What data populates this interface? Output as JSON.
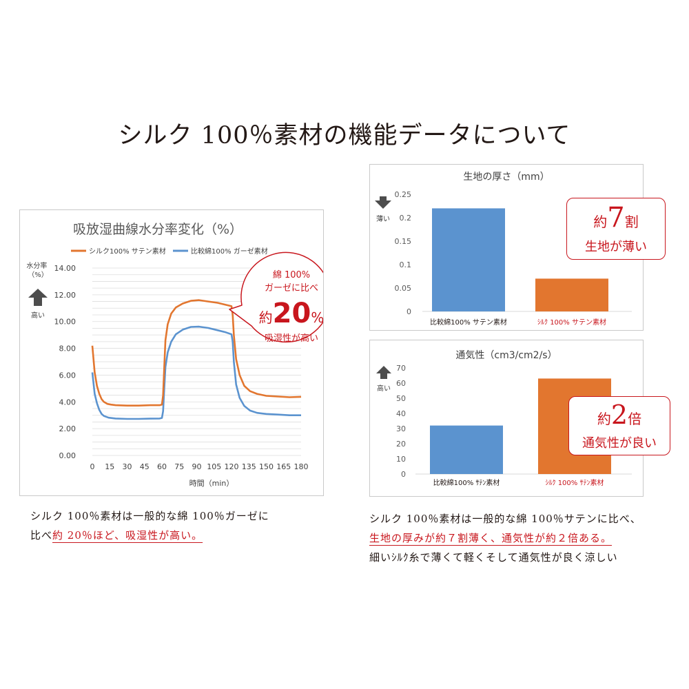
{
  "page_title": "シルク 100％素材の機能データについて",
  "colors": {
    "orange": "#e2762f",
    "blue": "#5b93cf",
    "red": "#c8161d",
    "grid": "#d9d9d9",
    "text": "#231815"
  },
  "icons": {
    "up_arrow": "up-arrow-icon",
    "down_arrow": "down-arrow-icon"
  },
  "chart_data": [
    {
      "id": "moisture",
      "type": "line",
      "title": "吸放湿曲線水分率変化（%）",
      "ylabel": "水分率\n（%）",
      "ylabel_note": "高い",
      "xlabel": "時間（min）",
      "ylim": [
        0,
        14
      ],
      "y_ticks": [
        "0.00",
        "2.00",
        "4.00",
        "6.00",
        "8.00",
        "10.00",
        "12.00",
        "14.00"
      ],
      "x_ticks": [
        "0",
        "15",
        "30",
        "45",
        "60",
        "75",
        "90",
        "105",
        "120",
        "135",
        "150",
        "165",
        "180"
      ],
      "grid": true,
      "legend_position": "top",
      "series": [
        {
          "name": "シルク100% サテン素材",
          "color": "#e2762f",
          "points": [
            [
              0,
              8.2
            ],
            [
              2,
              6.2
            ],
            [
              4,
              5.2
            ],
            [
              6,
              4.6
            ],
            [
              8,
              4.2
            ],
            [
              10,
              4.0
            ],
            [
              13,
              3.85
            ],
            [
              16,
              3.8
            ],
            [
              20,
              3.75
            ],
            [
              30,
              3.72
            ],
            [
              40,
              3.72
            ],
            [
              50,
              3.75
            ],
            [
              58,
              3.75
            ],
            [
              60,
              3.8
            ],
            [
              61,
              4.5
            ],
            [
              62,
              6.6
            ],
            [
              63,
              8.6
            ],
            [
              65,
              9.8
            ],
            [
              68,
              10.6
            ],
            [
              72,
              11.05
            ],
            [
              78,
              11.35
            ],
            [
              85,
              11.55
            ],
            [
              92,
              11.6
            ],
            [
              100,
              11.5
            ],
            [
              108,
              11.4
            ],
            [
              115,
              11.25
            ],
            [
              120,
              11.15
            ],
            [
              121,
              10.5
            ],
            [
              122,
              9.0
            ],
            [
              124,
              7.2
            ],
            [
              127,
              6.0
            ],
            [
              131,
              5.2
            ],
            [
              136,
              4.8
            ],
            [
              142,
              4.6
            ],
            [
              150,
              4.45
            ],
            [
              160,
              4.4
            ],
            [
              170,
              4.35
            ],
            [
              180,
              4.38
            ]
          ]
        },
        {
          "name": "比較綿100% ガーゼ素材",
          "color": "#5b93cf",
          "points": [
            [
              0,
              6.2
            ],
            [
              2,
              4.6
            ],
            [
              4,
              3.9
            ],
            [
              6,
              3.4
            ],
            [
              8,
              3.1
            ],
            [
              10,
              2.95
            ],
            [
              14,
              2.82
            ],
            [
              20,
              2.76
            ],
            [
              30,
              2.73
            ],
            [
              40,
              2.73
            ],
            [
              50,
              2.75
            ],
            [
              58,
              2.76
            ],
            [
              60,
              2.8
            ],
            [
              61,
              3.3
            ],
            [
              62,
              5.0
            ],
            [
              63,
              6.6
            ],
            [
              65,
              7.7
            ],
            [
              68,
              8.5
            ],
            [
              72,
              9.05
            ],
            [
              78,
              9.4
            ],
            [
              85,
              9.6
            ],
            [
              92,
              9.62
            ],
            [
              100,
              9.52
            ],
            [
              108,
              9.35
            ],
            [
              115,
              9.2
            ],
            [
              120,
              9.05
            ],
            [
              121,
              8.5
            ],
            [
              122,
              7.0
            ],
            [
              124,
              5.3
            ],
            [
              127,
              4.3
            ],
            [
              131,
              3.7
            ],
            [
              136,
              3.35
            ],
            [
              142,
              3.18
            ],
            [
              150,
              3.1
            ],
            [
              160,
              3.05
            ],
            [
              170,
              3.0
            ],
            [
              180,
              3.0
            ]
          ]
        }
      ],
      "callout": {
        "line1": "綿 100%",
        "line2": "ガーゼに比べ",
        "prefix": "約",
        "value": "20",
        "unit": "%",
        "line4": "吸湿性が高い"
      }
    },
    {
      "id": "thickness",
      "type": "bar",
      "title": "生地の厚さ（mm）",
      "ylabel_note": "薄い",
      "ylim": [
        0,
        0.25
      ],
      "y_ticks": [
        "0",
        "0.05",
        "0.1",
        "0.15",
        "0.2",
        "0.25"
      ],
      "grid": false,
      "categories": [
        "比較綿100% サテン素材",
        "ｼﾙｸ 100% サテン素材"
      ],
      "values": [
        0.22,
        0.07
      ],
      "bar_colors": [
        "#5b93cf",
        "#e2762f"
      ],
      "label_colors": [
        "#231815",
        "#c8161d"
      ],
      "callout": {
        "prefix": "約",
        "big": "7",
        "suffix": "割",
        "line2": "生地が薄い"
      }
    },
    {
      "id": "breathability",
      "type": "bar",
      "title": "通気性（cm3/cm2/s）",
      "ylabel_note": "高い",
      "ylim": [
        0,
        70
      ],
      "y_ticks": [
        "0",
        "10",
        "20",
        "30",
        "40",
        "50",
        "60",
        "70"
      ],
      "grid": false,
      "categories": [
        "比較綿100% ｻﾃﾝ素材",
        "ｼﾙｸ 100% ｻﾃﾝ素材"
      ],
      "values": [
        32,
        63
      ],
      "bar_colors": [
        "#5b93cf",
        "#e2762f"
      ],
      "label_colors": [
        "#231815",
        "#c8161d"
      ],
      "callout": {
        "prefix": "約",
        "big": "2",
        "suffix": "倍",
        "line2": "通気性が良い"
      }
    }
  ],
  "captions": {
    "left": {
      "line1": "シルク 100％素材は一般的な綿 100％ガーゼに",
      "line2_plain": "比べ",
      "line2_red": "約 20％ほど、吸湿性が高い。"
    },
    "right": {
      "line1": "シルク 100％素材は一般的な綿 100％サテンに比べ、",
      "line2_red": "生地の厚みが約７割薄く、通気性が約２倍ある。",
      "line3": "細いｼﾙｸ糸で薄くて軽くそして通気性が良く涼しい"
    }
  }
}
